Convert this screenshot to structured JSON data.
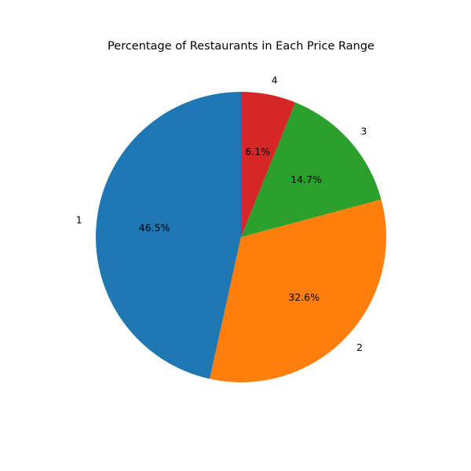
{
  "chart_data": {
    "type": "pie",
    "title": "Percentage of Restaurants in Each Price Range",
    "categories": [
      "1",
      "2",
      "3",
      "4"
    ],
    "values": [
      46.5,
      32.6,
      14.7,
      6.1
    ],
    "percent_labels": [
      "46.5%",
      "32.6%",
      "14.7%",
      "6.1%"
    ],
    "colors": [
      "#1f77b4",
      "#ff7f0e",
      "#2ca02c",
      "#d62728"
    ],
    "start_angle_deg": 90,
    "direction": "counterclockwise",
    "legend": "none"
  }
}
